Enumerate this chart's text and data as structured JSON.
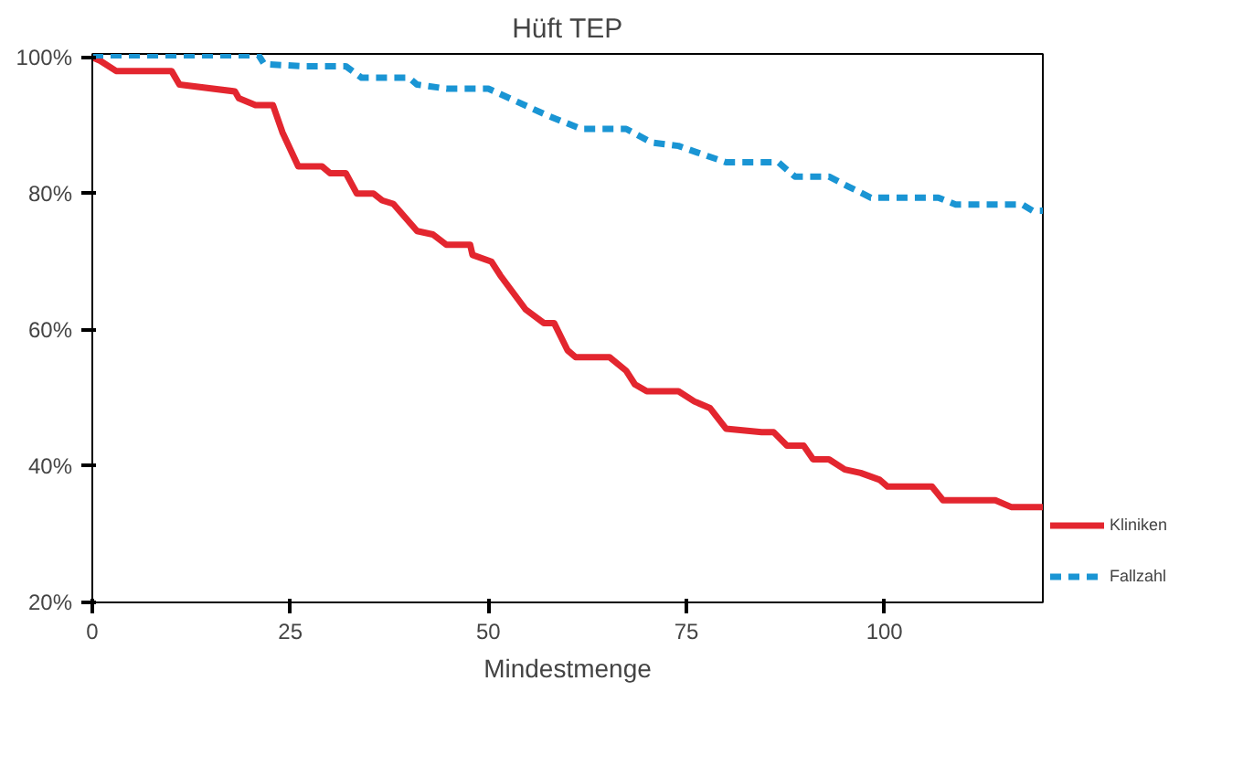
{
  "chart_data": {
    "type": "line",
    "title": "Hüft TEP",
    "xlabel": "Mindestmenge",
    "xlim": [
      0,
      120
    ],
    "ylim": [
      20,
      100.5
    ],
    "xticks": [
      0,
      25,
      50,
      75,
      100
    ],
    "yticks": [
      {
        "value": 20,
        "label": "20%"
      },
      {
        "value": 40,
        "label": "40%"
      },
      {
        "value": 60,
        "label": "60%"
      },
      {
        "value": 80,
        "label": "80%"
      },
      {
        "value": 100,
        "label": "100%"
      }
    ],
    "grid": false,
    "legend": "right",
    "series": [
      {
        "name": "Kliniken",
        "color": "#e3262f",
        "line_style": "solid",
        "x": [
          0,
          1,
          3,
          10,
          11,
          18,
          18.5,
          20.6,
          22.8,
          24,
          26,
          29,
          30,
          32,
          33.4,
          35.5,
          36.6,
          38,
          41,
          43,
          44.7,
          47.7,
          48,
          50.4,
          51.5,
          54.7,
          57,
          58.3,
          60,
          61,
          65.3,
          67.4,
          68.5,
          70,
          74,
          76,
          78,
          80,
          84.5,
          86,
          87.7,
          89.8,
          91,
          93,
          95,
          97,
          99.4,
          100.4,
          106,
          107.4,
          114,
          116,
          120
        ],
        "values": [
          100,
          99.5,
          98,
          98,
          96,
          95,
          94,
          93,
          93,
          89,
          84,
          84,
          83,
          83,
          80,
          80,
          79,
          78.5,
          74.5,
          74,
          72.5,
          72.5,
          71,
          70,
          68,
          63,
          61,
          61,
          57,
          56,
          56,
          54,
          52,
          51,
          51,
          49.5,
          48.5,
          45.5,
          45,
          45,
          43,
          43,
          41,
          41,
          39.5,
          39,
          38,
          37,
          37,
          35,
          35,
          34,
          34
        ]
      },
      {
        "name": "Fallzahl",
        "color": "#1a95d4",
        "line_style": "dashed",
        "x": [
          0,
          21,
          21.7,
          26.6,
          32,
          34,
          40,
          41,
          44.7,
          50,
          53.6,
          57.4,
          61.7,
          67.4,
          70.6,
          74,
          77.7,
          80,
          86.6,
          88.7,
          93,
          95.5,
          98.3,
          106.8,
          109,
          117.4,
          118.7,
          120
        ],
        "values": [
          100.3,
          100.3,
          99,
          98.7,
          98.7,
          97,
          97,
          96,
          95.4,
          95.4,
          93.5,
          91.5,
          89.5,
          89.5,
          87.5,
          87,
          85.5,
          84.6,
          84.6,
          82.5,
          82.5,
          81,
          79.4,
          79.4,
          78.4,
          78.4,
          77.5,
          77.5
        ]
      }
    ]
  }
}
